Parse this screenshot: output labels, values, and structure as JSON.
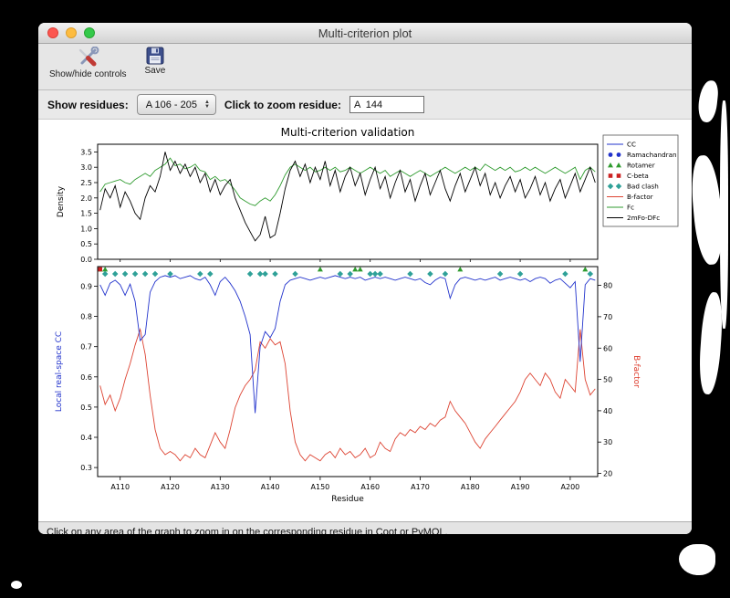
{
  "window": {
    "title": "Multi-criterion plot",
    "toolbar": {
      "show_hide_label": "Show/hide controls",
      "save_label": "Save"
    },
    "controls": {
      "show_residues_label": "Show residues:",
      "residue_range_value": "A 106 - 205",
      "zoom_residue_label": "Click to zoom residue:",
      "zoom_residue_value": "A  144"
    },
    "footer": "Click on any area of the graph to zoom in on the corresponding residue in Coot or PyMOL."
  },
  "chart_data": {
    "type": "line",
    "title": "Multi-criterion validation",
    "xlabel": "Residue",
    "x_first": 106,
    "x_last": 205,
    "xticks": [
      110,
      120,
      130,
      140,
      150,
      160,
      170,
      180,
      190,
      200
    ],
    "xtick_prefix": "A",
    "top_plot": {
      "ylabel": "Density",
      "ylim": [
        0,
        3.75
      ],
      "yticks": [
        0.0,
        0.5,
        1.0,
        1.5,
        2.0,
        2.5,
        3.0,
        3.5
      ],
      "series": [
        {
          "name": "Fc",
          "color": "#2f9b2f",
          "values": [
            2.2,
            2.45,
            2.5,
            2.55,
            2.6,
            2.5,
            2.45,
            2.6,
            2.7,
            2.8,
            2.7,
            2.9,
            3.0,
            3.1,
            3.3,
            3.05,
            3.1,
            2.95,
            3.0,
            3.1,
            2.9,
            2.85,
            2.6,
            2.7,
            2.55,
            2.6,
            2.45,
            2.25,
            2.0,
            1.9,
            1.8,
            1.75,
            1.9,
            2.0,
            1.9,
            2.1,
            2.4,
            2.75,
            3.0,
            3.1,
            3.0,
            2.9,
            3.0,
            2.85,
            2.9,
            3.0,
            2.9,
            3.0,
            2.85,
            2.9,
            3.0,
            2.9,
            2.8,
            2.9,
            3.0,
            2.9,
            2.8,
            2.9,
            2.7,
            2.8,
            2.9,
            2.8,
            2.7,
            2.8,
            2.9,
            2.8,
            2.7,
            2.8,
            2.9,
            3.0,
            2.9,
            2.8,
            2.9,
            3.0,
            2.9,
            3.0,
            2.9,
            3.1,
            3.0,
            2.9,
            3.0,
            2.9,
            3.0,
            2.85,
            2.9,
            3.0,
            2.9,
            3.0,
            2.9,
            2.8,
            2.9,
            3.0,
            2.9,
            2.8,
            2.9,
            3.0,
            2.6,
            2.9,
            3.0,
            2.85
          ]
        },
        {
          "name": "2mFo-DFc",
          "color": "#000000",
          "values": [
            1.6,
            2.3,
            2.0,
            2.4,
            1.7,
            2.2,
            1.9,
            1.5,
            1.3,
            2.0,
            2.4,
            2.2,
            2.7,
            3.5,
            2.9,
            3.2,
            2.8,
            3.1,
            2.7,
            3.0,
            2.5,
            2.8,
            2.2,
            2.6,
            2.1,
            2.4,
            2.6,
            2.0,
            1.6,
            1.2,
            0.9,
            0.6,
            0.8,
            1.4,
            0.7,
            0.8,
            1.5,
            2.3,
            2.9,
            3.2,
            2.7,
            3.1,
            2.5,
            3.0,
            2.6,
            3.2,
            2.4,
            2.9,
            2.2,
            2.7,
            3.0,
            2.4,
            2.8,
            2.1,
            2.6,
            3.0,
            2.3,
            2.7,
            2.0,
            2.5,
            2.9,
            2.2,
            2.6,
            1.9,
            2.4,
            2.8,
            2.1,
            2.5,
            2.9,
            2.3,
            1.9,
            2.4,
            2.8,
            2.2,
            2.6,
            3.0,
            2.4,
            2.8,
            2.1,
            2.5,
            2.0,
            2.4,
            2.7,
            2.2,
            2.6,
            2.0,
            2.3,
            2.7,
            2.1,
            2.5,
            1.9,
            2.3,
            2.6,
            2.0,
            2.4,
            2.8,
            2.2,
            2.6,
            3.0,
            2.5
          ]
        }
      ]
    },
    "bottom_plot": {
      "ylabel_left": "Local real-space CC",
      "ylabel_left_color": "#2233cc",
      "ylabel_right": "B-factor",
      "ylabel_right_color": "#dd3a2a",
      "ylim_left": [
        0.27,
        0.965
      ],
      "yticks_left": [
        0.3,
        0.4,
        0.5,
        0.6,
        0.7,
        0.8,
        0.9
      ],
      "ylim_right": [
        19,
        86
      ],
      "yticks_right": [
        20,
        30,
        40,
        50,
        60,
        70,
        80
      ],
      "series": [
        {
          "name": "B-factor",
          "axis": "right",
          "color": "#dd4433",
          "values": [
            48,
            42,
            45,
            40,
            44,
            50,
            55,
            61,
            66,
            58,
            45,
            34,
            28,
            26,
            27,
            26,
            24,
            26,
            25,
            28,
            26,
            25,
            29,
            33,
            30,
            28,
            34,
            41,
            45,
            48,
            50,
            53,
            62,
            60,
            63,
            61,
            62,
            55,
            40,
            30,
            26,
            24,
            26,
            25,
            24,
            26,
            27,
            25,
            28,
            26,
            27,
            25,
            26,
            28,
            25,
            26,
            30,
            28,
            27,
            31,
            33,
            32,
            34,
            33,
            35,
            34,
            36,
            35,
            37,
            38,
            43,
            40,
            38,
            36,
            33,
            30,
            28,
            31,
            33,
            35,
            37,
            39,
            41,
            43,
            46,
            50,
            52,
            50,
            48,
            52,
            50,
            46,
            44,
            50,
            48,
            46,
            66,
            50,
            45,
            47
          ]
        },
        {
          "name": "CC",
          "axis": "left",
          "color": "#2233cc",
          "values": [
            0.905,
            0.87,
            0.91,
            0.92,
            0.905,
            0.87,
            0.907,
            0.85,
            0.72,
            0.74,
            0.88,
            0.915,
            0.93,
            0.935,
            0.93,
            0.935,
            0.925,
            0.93,
            0.935,
            0.925,
            0.92,
            0.93,
            0.905,
            0.87,
            0.915,
            0.93,
            0.91,
            0.885,
            0.85,
            0.8,
            0.74,
            0.48,
            0.7,
            0.75,
            0.73,
            0.76,
            0.85,
            0.905,
            0.92,
            0.925,
            0.93,
            0.925,
            0.92,
            0.925,
            0.93,
            0.925,
            0.93,
            0.935,
            0.93,
            0.925,
            0.93,
            0.925,
            0.93,
            0.92,
            0.925,
            0.93,
            0.925,
            0.93,
            0.925,
            0.92,
            0.925,
            0.93,
            0.925,
            0.92,
            0.925,
            0.912,
            0.905,
            0.92,
            0.93,
            0.925,
            0.86,
            0.905,
            0.925,
            0.93,
            0.925,
            0.92,
            0.925,
            0.92,
            0.925,
            0.93,
            0.92,
            0.925,
            0.93,
            0.925,
            0.92,
            0.925,
            0.915,
            0.925,
            0.93,
            0.925,
            0.91,
            0.92,
            0.925,
            0.91,
            0.895,
            0.915,
            0.65,
            0.905,
            0.925,
            0.92
          ]
        }
      ],
      "markers": {
        "ramachandran": {
          "color": "#2233cc",
          "shape": "circle",
          "residues": []
        },
        "rotamer": {
          "color": "#2f9b2f",
          "shape": "triangle",
          "residues": [
            106,
            107,
            150,
            157,
            158,
            178,
            203
          ]
        },
        "c_beta": {
          "color": "#cc2222",
          "shape": "square",
          "residues": [
            106
          ]
        },
        "bad_clash": {
          "color": "#2fa198",
          "shape": "diamond",
          "residues": [
            107,
            109,
            111,
            113,
            115,
            117,
            120,
            126,
            128,
            136,
            138,
            139,
            141,
            145,
            154,
            156,
            160,
            161,
            162,
            168,
            172,
            175,
            186,
            190,
            199,
            204
          ]
        }
      }
    },
    "legend": [
      {
        "label": "CC",
        "type": "line",
        "color": "#2233cc"
      },
      {
        "label": "Ramachandran",
        "type": "circle",
        "color": "#2233cc"
      },
      {
        "label": "Rotamer",
        "type": "triangle",
        "color": "#2f9b2f"
      },
      {
        "label": "C-beta",
        "type": "square",
        "color": "#cc2222"
      },
      {
        "label": "Bad clash",
        "type": "diamond",
        "color": "#2fa198"
      },
      {
        "label": "B-factor",
        "type": "line",
        "color": "#dd4433"
      },
      {
        "label": "Fc",
        "type": "line",
        "color": "#2f9b2f"
      },
      {
        "label": "2mFo-DFc",
        "type": "line",
        "color": "#000000"
      }
    ]
  }
}
